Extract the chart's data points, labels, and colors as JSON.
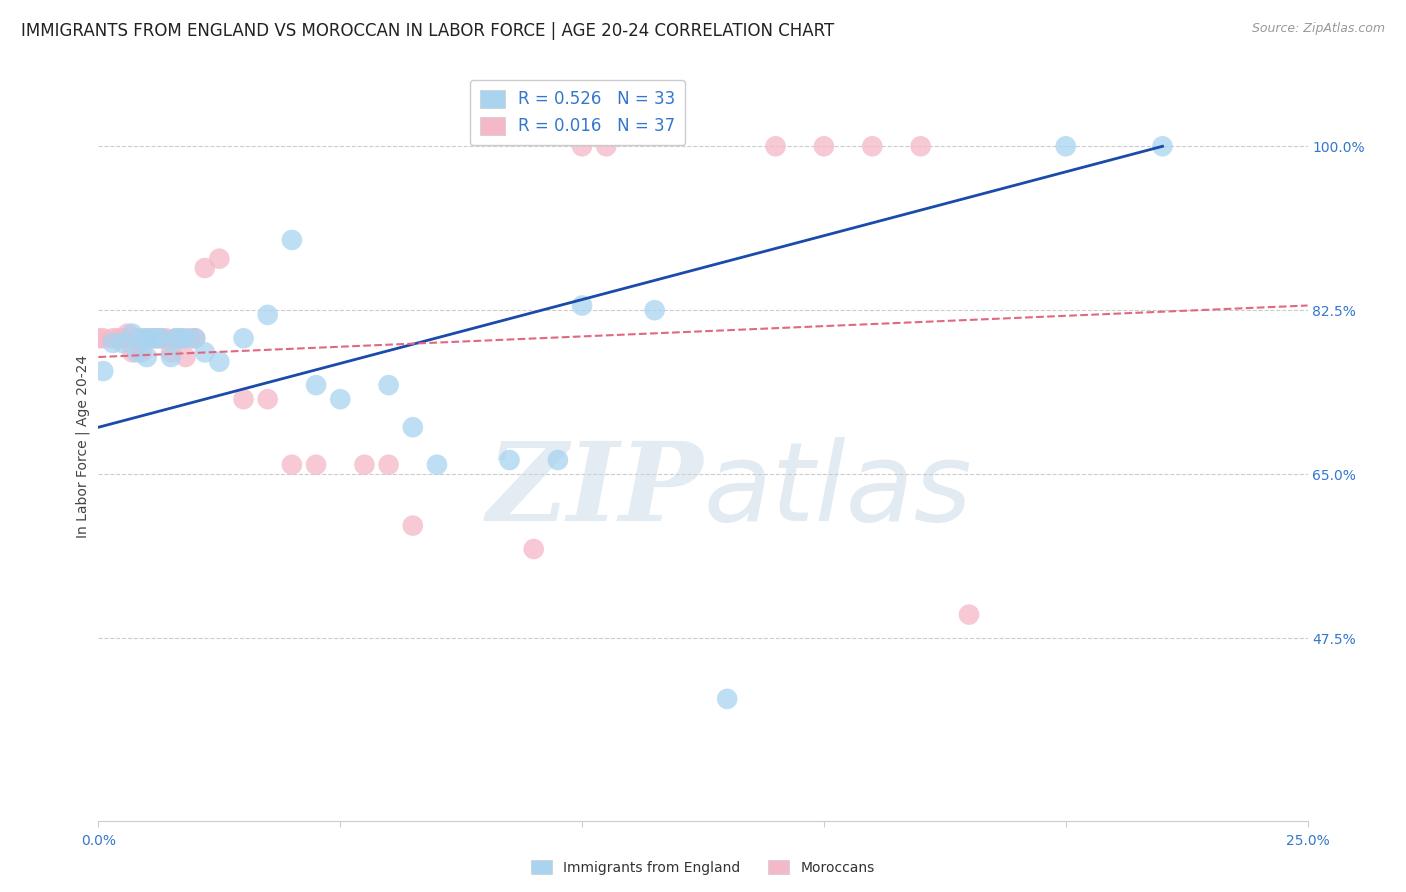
{
  "title": "IMMIGRANTS FROM ENGLAND VS MOROCCAN IN LABOR FORCE | AGE 20-24 CORRELATION CHART",
  "source": "Source: ZipAtlas.com",
  "ylabel": "In Labor Force | Age 20-24",
  "ytick_labels": [
    "100.0%",
    "82.5%",
    "65.0%",
    "47.5%"
  ],
  "ytick_values": [
    1.0,
    0.825,
    0.65,
    0.475
  ],
  "xtick_labels": [
    "0.0%",
    "25.0%"
  ],
  "xlim": [
    0.0,
    0.25
  ],
  "ylim": [
    0.28,
    1.08
  ],
  "england_R": "0.526",
  "england_N": "33",
  "morocco_R": "0.016",
  "morocco_N": "37",
  "england_color": "#a8d4f0",
  "morocco_color": "#f5b8c8",
  "england_line_color": "#1a4aaa",
  "morocco_line_color": "#e06880",
  "england_x": [
    0.001,
    0.003,
    0.005,
    0.007,
    0.008,
    0.009,
    0.01,
    0.01,
    0.011,
    0.012,
    0.013,
    0.015,
    0.016,
    0.017,
    0.018,
    0.02,
    0.022,
    0.025,
    0.03,
    0.035,
    0.04,
    0.045,
    0.05,
    0.06,
    0.065,
    0.07,
    0.085,
    0.095,
    0.1,
    0.115,
    0.13,
    0.2,
    0.22
  ],
  "england_y": [
    0.76,
    0.79,
    0.79,
    0.8,
    0.78,
    0.795,
    0.775,
    0.795,
    0.795,
    0.795,
    0.795,
    0.775,
    0.795,
    0.795,
    0.795,
    0.795,
    0.78,
    0.77,
    0.795,
    0.82,
    0.9,
    0.745,
    0.73,
    0.745,
    0.7,
    0.66,
    0.665,
    0.665,
    0.83,
    0.825,
    0.41,
    1.0,
    1.0
  ],
  "morocco_x": [
    0.0,
    0.001,
    0.003,
    0.004,
    0.005,
    0.006,
    0.007,
    0.008,
    0.009,
    0.01,
    0.011,
    0.012,
    0.013,
    0.014,
    0.015,
    0.016,
    0.017,
    0.018,
    0.019,
    0.02,
    0.022,
    0.025,
    0.03,
    0.035,
    0.04,
    0.045,
    0.055,
    0.06,
    0.065,
    0.09,
    0.1,
    0.105,
    0.14,
    0.15,
    0.16,
    0.17,
    0.18
  ],
  "morocco_y": [
    0.795,
    0.795,
    0.795,
    0.795,
    0.795,
    0.8,
    0.78,
    0.795,
    0.78,
    0.795,
    0.795,
    0.795,
    0.795,
    0.795,
    0.78,
    0.795,
    0.795,
    0.775,
    0.795,
    0.795,
    0.87,
    0.88,
    0.73,
    0.73,
    0.66,
    0.66,
    0.66,
    0.66,
    0.595,
    0.57,
    1.0,
    1.0,
    1.0,
    1.0,
    1.0,
    1.0,
    0.5
  ],
  "eng_line_x": [
    0.0,
    0.22
  ],
  "eng_line_y": [
    0.7,
    1.0
  ],
  "mor_line_x": [
    0.0,
    0.25
  ],
  "mor_line_y": [
    0.775,
    0.83
  ],
  "watermark_zip": "ZIP",
  "watermark_atlas": "atlas",
  "grid_color": "#cccccc",
  "background_color": "#ffffff",
  "title_fontsize": 12,
  "source_fontsize": 9,
  "axis_label_fontsize": 10,
  "tick_fontsize": 10,
  "legend_fontsize": 12
}
